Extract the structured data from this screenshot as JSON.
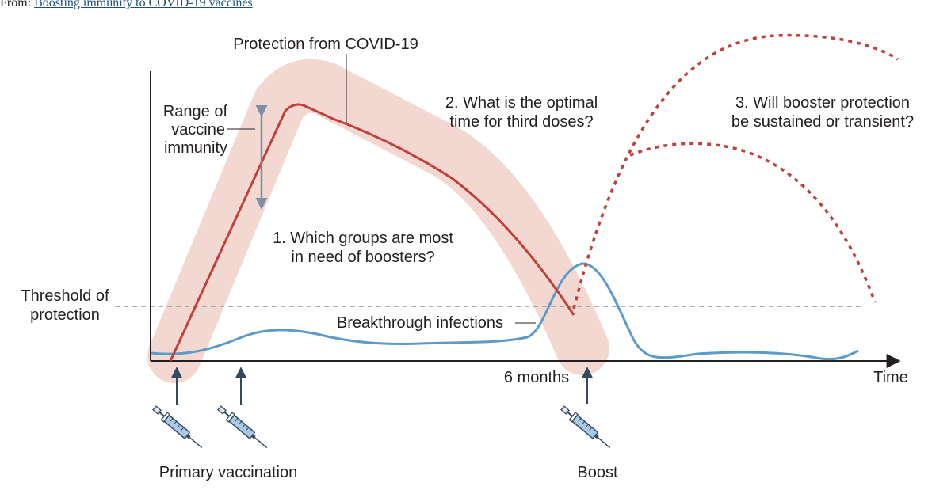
{
  "header": {
    "from_label": "From:",
    "source_link": "Boosting immunity to COVID-19 vaccines"
  },
  "figure": {
    "labels": {
      "protection": "Protection from COVID-19",
      "range_line1": "Range of",
      "range_line2": "vaccine",
      "range_line3": "immunity",
      "q1_line1": "1. Which groups are most",
      "q1_line2": "in need of boosters?",
      "q2_line1": "2. What is the optimal",
      "q2_line2": "time for third doses?",
      "q3_line1": "3. Will booster protection",
      "q3_line2": "be sustained or transient?",
      "threshold_line1": "Threshold of",
      "threshold_line2": "protection",
      "breakthrough": "Breakthrough infections",
      "six_months": "6 months",
      "time": "Time",
      "primary": "Primary vaccination",
      "boost": "Boost"
    },
    "colors": {
      "band": "#f3d8d1",
      "protection_curve": "#c0403a",
      "booster_curves": "#c0403a",
      "infection_curve": "#5b9ac9",
      "threshold_line": "#8a98a8",
      "range_arrow": "#7d8ea6",
      "axis": "#231f20",
      "dose_arrows": "#34495e"
    },
    "icons": [
      "syringe-icon",
      "syringe-icon",
      "syringe-icon"
    ]
  }
}
